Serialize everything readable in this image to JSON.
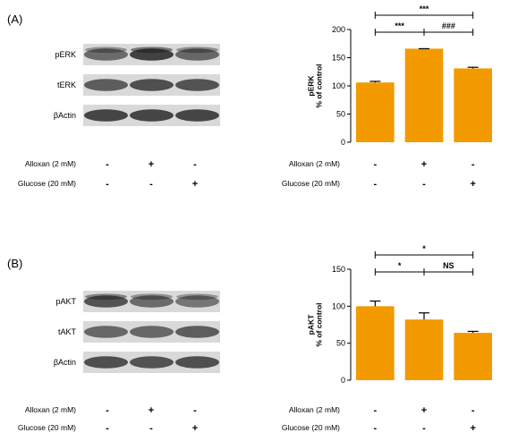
{
  "panels": [
    {
      "label": "(A)",
      "blot": {
        "bands": [
          "pERK",
          "tERK",
          "βActin"
        ],
        "treatment_rows": [
          {
            "label": "Alloxan (2 mM)",
            "marks": [
              "-",
              "+",
              "-"
            ]
          },
          {
            "label": "Glucose (20 mM)",
            "marks": [
              "-",
              "-",
              "+"
            ]
          }
        ]
      }
    },
    {
      "label": "(B)",
      "blot": {
        "bands": [
          "pAKT",
          "tAKT",
          "βActin"
        ],
        "treatment_rows": [
          {
            "label": "Alloxan (2 mM)",
            "marks": [
              "-",
              "+",
              "-"
            ]
          },
          {
            "label": "Glucose (20 mM)",
            "marks": [
              "-",
              "-",
              "+"
            ]
          }
        ]
      }
    }
  ],
  "chart_data": [
    {
      "type": "bar",
      "ylabel": [
        "pERK",
        "% of control"
      ],
      "ylim": [
        0,
        200
      ],
      "yticks": [
        0,
        50,
        100,
        150,
        200
      ],
      "bar_color": "#F39A00",
      "values": [
        106,
        166,
        131
      ],
      "errors": [
        2,
        0,
        2
      ],
      "categories": [
        {
          "Alloxan (2 mM)": "-",
          "Glucose (20 mM)": "-"
        },
        {
          "Alloxan (2 mM)": "+",
          "Glucose (20 mM)": "-"
        },
        {
          "Alloxan (2 mM)": "-",
          "Glucose (20 mM)": "+"
        }
      ],
      "treatment_rows": [
        {
          "label": "Alloxan (2 mM)",
          "marks": [
            "-",
            "+",
            "-"
          ]
        },
        {
          "label": "Glucose (20 mM)",
          "marks": [
            "-",
            "-",
            "+"
          ]
        }
      ],
      "significance": [
        {
          "from": 0,
          "to": 1,
          "label": "***"
        },
        {
          "from": 1,
          "to": 2,
          "label": "###"
        },
        {
          "from": 0,
          "to": 2,
          "label": "***"
        }
      ],
      "grid": false,
      "legend": "none"
    },
    {
      "type": "bar",
      "ylabel": [
        "pAKT",
        "% of control"
      ],
      "ylim": [
        0,
        150
      ],
      "yticks": [
        0,
        50,
        100,
        150
      ],
      "bar_color": "#F39A00",
      "values": [
        100,
        82,
        64
      ],
      "errors": [
        7,
        9,
        2
      ],
      "categories": [
        {
          "Alloxan (2 mM)": "-",
          "Glucose (20 mM)": "-"
        },
        {
          "Alloxan (2 mM)": "+",
          "Glucose (20 mM)": "-"
        },
        {
          "Alloxan (2 mM)": "-",
          "Glucose (20 mM)": "+"
        }
      ],
      "treatment_rows": [
        {
          "label": "Alloxan (2 mM)",
          "marks": [
            "-",
            "+",
            "-"
          ]
        },
        {
          "label": "Glucose (20 mM)",
          "marks": [
            "-",
            "-",
            "+"
          ]
        }
      ],
      "significance": [
        {
          "from": 0,
          "to": 1,
          "label": "*"
        },
        {
          "from": 1,
          "to": 2,
          "label": "NS"
        },
        {
          "from": 0,
          "to": 2,
          "label": "*"
        }
      ],
      "grid": false,
      "legend": "none"
    }
  ]
}
